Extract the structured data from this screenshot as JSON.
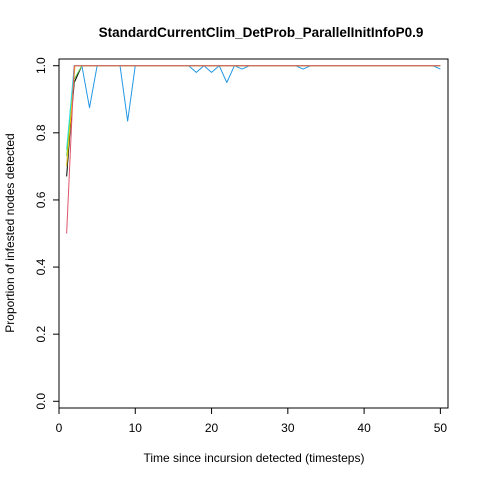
{
  "chart_data": {
    "type": "line",
    "title": "StandardCurrentClim_DetProb_ParallelInitInfoP0.9",
    "xlabel": "Time since incursion detected (timesteps)",
    "ylabel": "Proportion of infested nodes detected",
    "xlim": [
      0,
      51
    ],
    "ylim": [
      -0.02,
      1.02
    ],
    "xticks": [
      0,
      10,
      20,
      30,
      40,
      50
    ],
    "yticks": [
      0.0,
      0.2,
      0.4,
      0.6,
      0.8,
      1.0
    ],
    "xtick_labels": [
      "0",
      "10",
      "20",
      "30",
      "40",
      "50"
    ],
    "ytick_labels": [
      "0.0",
      "0.2",
      "0.4",
      "0.6",
      "0.8",
      "1.0"
    ],
    "grid": false,
    "legend": "none",
    "series": [
      {
        "color": "#000000",
        "x": [
          1,
          1.5,
          2,
          3,
          50
        ],
        "y": [
          0.67,
          0.82,
          0.95,
          1.0,
          1.0
        ]
      },
      {
        "color": "#2297E6",
        "x": [
          1,
          2,
          3,
          4,
          5,
          6,
          7,
          8,
          9,
          10,
          11,
          12,
          13,
          14,
          15,
          16,
          17,
          18,
          19,
          20,
          21,
          22,
          23,
          24,
          25,
          26,
          27,
          28,
          29,
          30,
          31,
          32,
          33,
          34,
          35,
          36,
          37,
          38,
          39,
          40,
          41,
          42,
          43,
          44,
          45,
          46,
          47,
          48,
          49,
          50
        ],
        "y": [
          0.7,
          1.0,
          1.0,
          0.875,
          1.0,
          1.0,
          1.0,
          1.0,
          0.835,
          1.0,
          1.0,
          1.0,
          1.0,
          1.0,
          1.0,
          1.0,
          1.0,
          0.98,
          1.0,
          0.98,
          1.0,
          0.95,
          1.0,
          0.99,
          1.0,
          1.0,
          1.0,
          1.0,
          1.0,
          1.0,
          1.0,
          0.99,
          1.0,
          1.0,
          1.0,
          1.0,
          1.0,
          1.0,
          1.0,
          1.0,
          1.0,
          1.0,
          1.0,
          1.0,
          1.0,
          1.0,
          1.0,
          1.0,
          1.0,
          0.99
        ]
      },
      {
        "color": "#28E2E5",
        "x": [
          1,
          2,
          50
        ],
        "y": [
          0.75,
          1.0,
          1.0
        ]
      },
      {
        "color": "#61D04F",
        "x": [
          1,
          2,
          3,
          50
        ],
        "y": [
          0.73,
          0.96,
          1.0,
          1.0
        ]
      },
      {
        "color": "#F5C710",
        "x": [
          1,
          1.6,
          2.1,
          50
        ],
        "y": [
          0.7,
          0.86,
          1.0,
          1.0
        ]
      },
      {
        "color": "#DF536B",
        "x": [
          1,
          2,
          50
        ],
        "y": [
          0.5,
          1.0,
          1.0
        ]
      }
    ]
  }
}
